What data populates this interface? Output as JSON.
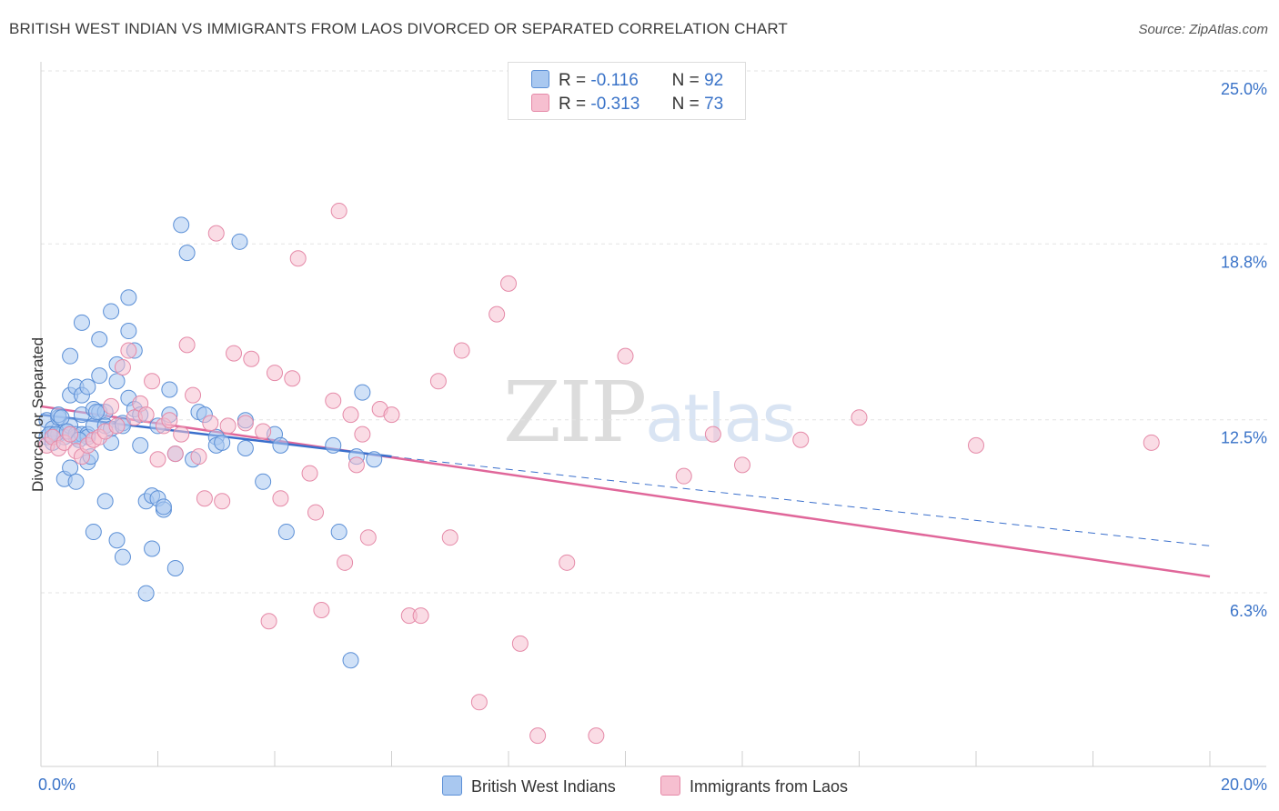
{
  "header": {
    "title": "BRITISH WEST INDIAN VS IMMIGRANTS FROM LAOS DIVORCED OR SEPARATED CORRELATION CHART",
    "source": "Source: ZipAtlas.com"
  },
  "watermark": {
    "zip": "ZIP",
    "atlas": "atlas"
  },
  "legend": {
    "row1": {
      "r_label": "R =",
      "r_value": "-0.116",
      "n_label": "N =",
      "n_value": "92"
    },
    "row2": {
      "r_label": "R =",
      "r_value": "-0.313",
      "n_label": "N =",
      "n_value": "73"
    }
  },
  "bottom_legend": {
    "series1": "British West Indians",
    "series2": "Immigrants from Laos"
  },
  "colors": {
    "blue_fill": "#a9c8f0",
    "blue_stroke": "#5b8fd6",
    "blue_line": "#3a6fcc",
    "pink_fill": "#f6bfd0",
    "pink_stroke": "#e58aa8",
    "pink_line": "#e0679a",
    "tick_label": "#3a73c8",
    "grid": "#e3e3e3"
  },
  "chart_data": {
    "type": "scatter",
    "title": "BRITISH WEST INDIAN VS IMMIGRANTS FROM LAOS DIVORCED OR SEPARATED CORRELATION CHART",
    "xlabel": "",
    "ylabel": "Divorced or Separated",
    "xlim": [
      0,
      20
    ],
    "ylim": [
      0,
      26
    ],
    "x_tick_labels": [
      "0.0%",
      "20.0%"
    ],
    "y_ticks": [
      6.3,
      12.5,
      18.8,
      25.0
    ],
    "y_tick_labels": [
      "6.3%",
      "12.5%",
      "18.8%",
      "25.0%"
    ],
    "grid": true,
    "legend_placement": "top-center",
    "series": [
      {
        "name": "British West Indians",
        "r": -0.116,
        "n": 92,
        "trend": {
          "x0": 0,
          "y0": 13.3,
          "x1": 6,
          "y1": 11.8,
          "dash_to_x": 20,
          "dash_to_y": 8.6
        },
        "x": [
          0.1,
          0.1,
          0.2,
          0.2,
          0.2,
          0.3,
          0.3,
          0.3,
          0.4,
          0.4,
          0.4,
          0.5,
          0.5,
          0.5,
          0.5,
          0.6,
          0.6,
          0.6,
          0.6,
          0.7,
          0.7,
          0.7,
          0.7,
          0.8,
          0.8,
          0.8,
          0.8,
          0.9,
          0.9,
          0.9,
          1.0,
          1.0,
          1.0,
          1.1,
          1.1,
          1.1,
          1.2,
          1.2,
          1.2,
          1.3,
          1.3,
          1.3,
          1.4,
          1.4,
          1.4,
          1.5,
          1.5,
          1.5,
          1.6,
          1.6,
          1.7,
          1.7,
          1.8,
          1.8,
          1.9,
          1.9,
          2.0,
          2.0,
          2.1,
          2.1,
          2.2,
          2.2,
          2.3,
          2.3,
          2.4,
          2.5,
          2.6,
          2.7,
          2.8,
          3.0,
          3.0,
          3.1,
          3.4,
          3.5,
          3.5,
          3.8,
          4.0,
          4.1,
          4.2,
          5.0,
          5.1,
          5.3,
          5.4,
          5.5,
          5.7,
          0.15,
          0.25,
          0.35,
          0.45,
          0.65,
          0.85,
          0.95
        ],
        "y": [
          12.5,
          13.1,
          12.6,
          12.3,
          12.8,
          13.2,
          12.6,
          13.3,
          12.7,
          11.0,
          12.5,
          11.4,
          12.9,
          14.0,
          15.4,
          14.3,
          12.5,
          10.9,
          12.6,
          16.6,
          14.0,
          13.3,
          12.6,
          14.3,
          12.6,
          11.6,
          12.5,
          13.5,
          9.1,
          12.9,
          13.4,
          14.7,
          16.0,
          13.4,
          12.9,
          10.2,
          17.0,
          12.3,
          12.8,
          15.1,
          14.5,
          8.8,
          13.0,
          12.9,
          8.2,
          16.3,
          17.5,
          13.9,
          13.5,
          15.6,
          12.2,
          13.3,
          10.2,
          6.9,
          10.4,
          8.5,
          12.9,
          10.3,
          9.9,
          10.0,
          13.3,
          14.2,
          11.9,
          7.8,
          20.1,
          19.1,
          11.7,
          13.4,
          13.3,
          12.5,
          12.2,
          12.3,
          19.5,
          13.1,
          12.1,
          10.9,
          12.6,
          12.2,
          9.1,
          12.2,
          9.1,
          4.5,
          11.8,
          14.1,
          11.7,
          12.6,
          12.6,
          13.2,
          12.7,
          12.4,
          11.8,
          13.4
        ]
      },
      {
        "name": "Immigrants from Laos",
        "r": -0.313,
        "n": 73,
        "trend": {
          "x0": 0,
          "y0": 13.6,
          "x1": 20,
          "y1": 7.5
        },
        "x": [
          0.1,
          0.2,
          0.3,
          0.4,
          0.5,
          0.6,
          0.7,
          0.8,
          0.9,
          1.0,
          1.1,
          1.2,
          1.3,
          1.4,
          1.5,
          1.6,
          1.7,
          1.8,
          1.9,
          2.0,
          2.1,
          2.2,
          2.3,
          2.4,
          2.5,
          2.6,
          2.7,
          2.8,
          2.9,
          3.0,
          3.1,
          3.2,
          3.3,
          3.5,
          3.6,
          3.8,
          3.9,
          4.0,
          4.1,
          4.3,
          4.4,
          4.6,
          4.7,
          4.8,
          5.0,
          5.1,
          5.2,
          5.3,
          5.4,
          5.5,
          5.6,
          5.8,
          6.0,
          6.3,
          6.5,
          6.8,
          7.0,
          7.2,
          7.5,
          7.8,
          8.0,
          8.2,
          8.5,
          9.0,
          9.5,
          10.0,
          11.0,
          11.5,
          12.0,
          13.0,
          14.0,
          16.0,
          19.0
        ],
        "y": [
          12.2,
          12.5,
          12.1,
          12.3,
          12.6,
          12.0,
          11.8,
          12.2,
          12.4,
          12.5,
          12.7,
          13.6,
          12.9,
          15.0,
          15.6,
          13.2,
          13.7,
          13.3,
          14.5,
          11.7,
          12.9,
          13.1,
          11.9,
          12.6,
          15.8,
          14.0,
          11.8,
          10.3,
          13.0,
          19.8,
          10.2,
          12.9,
          15.5,
          13.0,
          15.3,
          12.7,
          5.9,
          14.8,
          10.3,
          14.6,
          18.9,
          11.2,
          9.8,
          6.3,
          13.8,
          20.6,
          8.0,
          13.3,
          11.5,
          12.6,
          8.9,
          13.5,
          13.3,
          6.1,
          6.1,
          14.5,
          8.9,
          15.6,
          3.0,
          16.9,
          18.0,
          5.1,
          1.8,
          8.0,
          1.8,
          15.4,
          11.1,
          12.6,
          11.5,
          12.4,
          13.2,
          12.2,
          12.3
        ]
      }
    ]
  },
  "axes": {
    "x_left_label": "0.0%",
    "x_right_label": "20.0%",
    "y_labels": [
      "25.0%",
      "18.8%",
      "12.5%",
      "6.3%"
    ]
  }
}
